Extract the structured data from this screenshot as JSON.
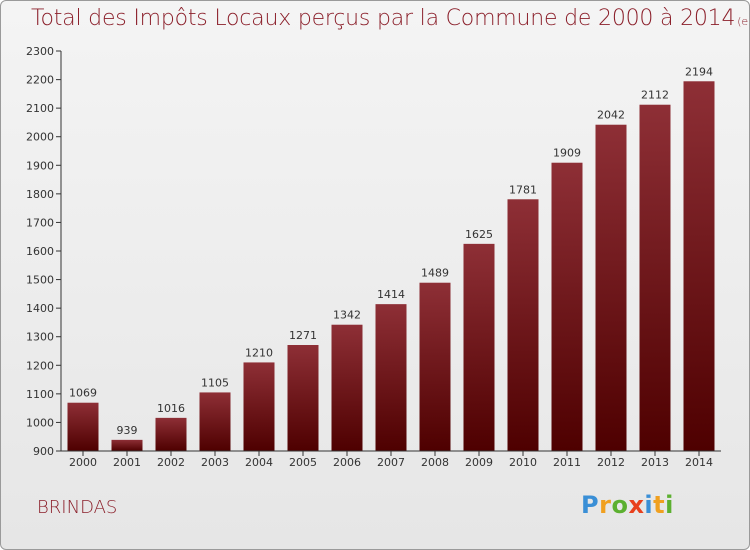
{
  "chart_data": {
    "type": "bar",
    "title": "Total des Impôts Locaux perçus par la Commune de 2000 à 2014",
    "title_unit": "(en milliers d'€)",
    "categories": [
      "2000",
      "2001",
      "2002",
      "2003",
      "2004",
      "2005",
      "2006",
      "2007",
      "2008",
      "2009",
      "2010",
      "2011",
      "2012",
      "2013",
      "2014"
    ],
    "values": [
      1069,
      939,
      1016,
      1105,
      1210,
      1271,
      1342,
      1414,
      1489,
      1625,
      1781,
      1909,
      2042,
      2112,
      2194
    ],
    "ylim": [
      900,
      2300
    ],
    "yticks": [
      900,
      1000,
      1100,
      1200,
      1300,
      1400,
      1500,
      1600,
      1700,
      1800,
      1900,
      2000,
      2100,
      2200,
      2300
    ],
    "xlabel": "",
    "ylabel": "",
    "grid": false,
    "bar_color_top": "#8e2f36",
    "bar_color_bottom": "#4e0000"
  },
  "commune": "BRINDAS",
  "logo": {
    "letters": [
      "P",
      "r",
      "o",
      "x",
      "i",
      "t",
      "i"
    ],
    "colors": [
      "#3a8fd6",
      "#f0a020",
      "#5cb030",
      "#e8401c",
      "#3a8fd6",
      "#f0a020",
      "#5cb030"
    ]
  }
}
